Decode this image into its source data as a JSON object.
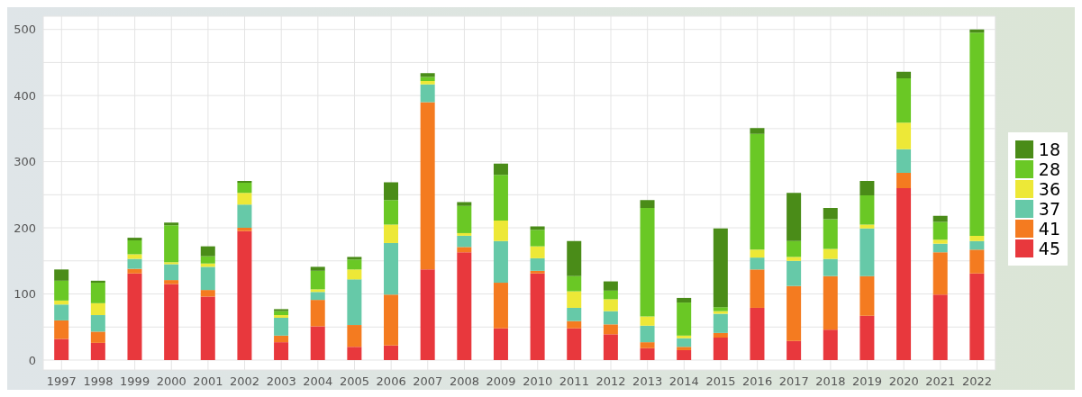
{
  "chart_data": {
    "type": "bar",
    "stacked": true,
    "categories": [
      "1997",
      "1998",
      "1999",
      "2000",
      "2001",
      "2002",
      "2003",
      "2004",
      "2005",
      "2006",
      "2007",
      "2008",
      "2009",
      "2010",
      "2011",
      "2012",
      "2013",
      "2014",
      "2015",
      "2016",
      "2017",
      "2018",
      "2019",
      "2020",
      "2021",
      "2022"
    ],
    "series": [
      {
        "name": "45",
        "color": "#e8383d",
        "values": [
          32,
          26,
          131,
          115,
          96,
          195,
          27,
          51,
          20,
          22,
          137,
          163,
          48,
          131,
          48,
          39,
          18,
          15,
          34,
          79,
          29,
          46,
          67,
          260,
          99,
          131
        ]
      },
      {
        "name": "41",
        "color": "#f47b20",
        "values": [
          28,
          17,
          7,
          6,
          10,
          5,
          10,
          40,
          33,
          77,
          253,
          8,
          69,
          4,
          11,
          15,
          9,
          5,
          7,
          58,
          83,
          81,
          60,
          23,
          64,
          36
        ]
      },
      {
        "name": "37",
        "color": "#66c9a8",
        "values": [
          24,
          25,
          15,
          24,
          35,
          35,
          27,
          12,
          69,
          78,
          27,
          17,
          63,
          19,
          20,
          20,
          25,
          13,
          29,
          18,
          38,
          26,
          72,
          36,
          13,
          13
        ]
      },
      {
        "name": "36",
        "color": "#ede837",
        "values": [
          6,
          18,
          7,
          3,
          5,
          18,
          4,
          4,
          15,
          28,
          5,
          4,
          31,
          18,
          25,
          18,
          14,
          4,
          4,
          12,
          6,
          15,
          6,
          40,
          6,
          8
        ]
      },
      {
        "name": "28",
        "color": "#6ac825",
        "values": [
          30,
          31,
          21,
          56,
          11,
          15,
          6,
          28,
          15,
          37,
          6,
          41,
          69,
          25,
          23,
          13,
          164,
          50,
          6,
          175,
          24,
          45,
          44,
          67,
          27,
          307
        ]
      },
      {
        "name": "18",
        "color": "#4a8c18",
        "values": [
          17,
          3,
          4,
          4,
          15,
          3,
          3,
          6,
          4,
          27,
          6,
          6,
          17,
          5,
          53,
          14,
          12,
          7,
          119,
          9,
          73,
          17,
          22,
          10,
          9,
          5
        ]
      }
    ],
    "ylim": [
      -15,
      520
    ],
    "yticks": [
      0,
      {
        "value": 50,
        "label": null
      },
      100,
      {
        "value": 150,
        "label": null
      },
      200,
      {
        "value": 250,
        "label": null
      },
      300,
      {
        "value": 350,
        "label": null
      },
      400,
      {
        "value": 450,
        "label": null
      },
      500
    ],
    "grid": true,
    "legend": "right"
  }
}
